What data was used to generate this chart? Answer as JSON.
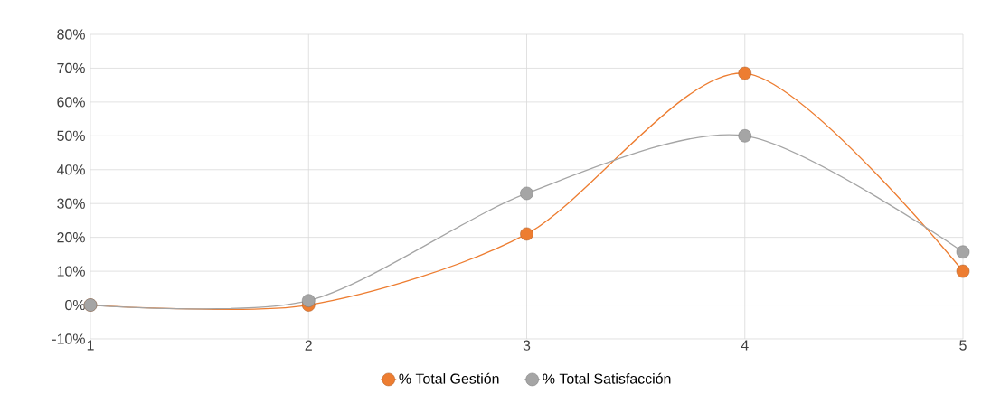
{
  "chart_data": {
    "type": "line",
    "categories": [
      "1",
      "2",
      "3",
      "4",
      "5"
    ],
    "series": [
      {
        "name": "% Total Gestión",
        "color": "#ed7d31",
        "values": [
          0,
          0,
          21,
          68.5,
          10
        ]
      },
      {
        "name": "% Total Satisfacción",
        "color": "#a5a5a5",
        "values": [
          0,
          1.3,
          33,
          50,
          15.7
        ]
      }
    ],
    "ylim": [
      -10,
      80
    ],
    "yticks": [
      {
        "value": -10,
        "label": "-10%"
      },
      {
        "value": 0,
        "label": "0%"
      },
      {
        "value": 10,
        "label": "10%"
      },
      {
        "value": 20,
        "label": "20%"
      },
      {
        "value": 30,
        "label": "30%"
      },
      {
        "value": 40,
        "label": "40%"
      },
      {
        "value": 50,
        "label": "50%"
      },
      {
        "value": 60,
        "label": "60%"
      },
      {
        "value": 70,
        "label": "70%"
      },
      {
        "value": 80,
        "label": "80%"
      }
    ],
    "grid": true,
    "legend": "bottom",
    "marker": "circle",
    "line_style": "solid"
  }
}
